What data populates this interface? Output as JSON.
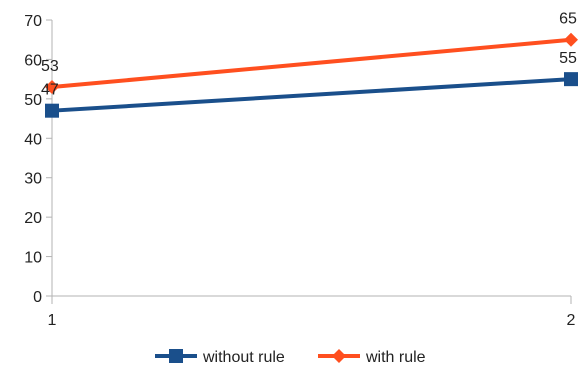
{
  "chart_data": {
    "type": "line",
    "title": "",
    "xlabel": "",
    "ylabel": "",
    "x": [
      "1",
      "2"
    ],
    "ylim": [
      0,
      70
    ],
    "y_ticks": [
      "0",
      "10",
      "20",
      "30",
      "40",
      "50",
      "60",
      "70"
    ],
    "grid": false,
    "legend_position": "bottom",
    "series": [
      {
        "name": "without rule",
        "values": [
          47,
          55
        ],
        "data_labels": [
          "47",
          "55"
        ],
        "color": "#1a4f8b",
        "marker": "square"
      },
      {
        "name": "with rule",
        "values": [
          53,
          65
        ],
        "data_labels": [
          "53",
          "65"
        ],
        "color": "#ff4f1f",
        "marker": "diamond"
      }
    ]
  }
}
